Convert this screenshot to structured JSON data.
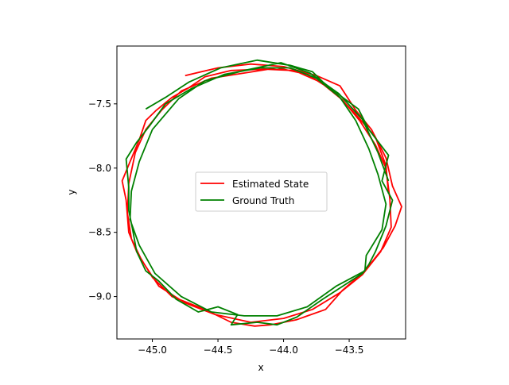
{
  "chart_data": {
    "type": "line",
    "xlabel": "x",
    "ylabel": "y",
    "xlim": [
      -45.27,
      -43.07
    ],
    "ylim": [
      -9.33,
      -7.05
    ],
    "xticks": [
      -45.0,
      -44.5,
      -44.0,
      -43.5
    ],
    "xtick_labels": [
      "−45.0",
      "−44.5",
      "−44.0",
      "−43.5"
    ],
    "yticks": [
      -7.5,
      -8.0,
      -8.5,
      -9.0
    ],
    "ytick_labels": [
      "−7.5",
      "−8.0",
      "−8.5",
      "−9.0"
    ],
    "grid": false,
    "legend_position": "center",
    "series": [
      {
        "name": "Estimated State",
        "color": "#ff0000",
        "points": [
          [
            -44.75,
            -7.28
          ],
          [
            -44.5,
            -7.22
          ],
          [
            -44.25,
            -7.19
          ],
          [
            -44.0,
            -7.21
          ],
          [
            -43.75,
            -7.28
          ],
          [
            -43.57,
            -7.36
          ],
          [
            -43.45,
            -7.55
          ],
          [
            -43.33,
            -7.7
          ],
          [
            -43.22,
            -7.92
          ],
          [
            -43.17,
            -8.14
          ],
          [
            -43.1,
            -8.3
          ],
          [
            -43.15,
            -8.45
          ],
          [
            -43.24,
            -8.62
          ],
          [
            -43.38,
            -8.8
          ],
          [
            -43.55,
            -8.95
          ],
          [
            -43.68,
            -9.1
          ],
          [
            -43.9,
            -9.18
          ],
          [
            -44.1,
            -9.22
          ],
          [
            -44.22,
            -9.23
          ],
          [
            -44.4,
            -9.2
          ],
          [
            -44.6,
            -9.1
          ],
          [
            -44.85,
            -9.0
          ],
          [
            -45.0,
            -8.85
          ],
          [
            -45.12,
            -8.65
          ],
          [
            -45.18,
            -8.5
          ],
          [
            -45.2,
            -8.25
          ],
          [
            -45.23,
            -8.1
          ],
          [
            -45.17,
            -7.95
          ],
          [
            -45.1,
            -7.78
          ],
          [
            -45.05,
            -7.63
          ],
          [
            -44.97,
            -7.55
          ],
          [
            -44.85,
            -7.45
          ],
          [
            -44.73,
            -7.38
          ],
          [
            -44.6,
            -7.29
          ],
          [
            -44.4,
            -7.24
          ],
          [
            -44.15,
            -7.23
          ],
          [
            -43.92,
            -7.24
          ],
          [
            -43.72,
            -7.33
          ],
          [
            -43.55,
            -7.47
          ],
          [
            -43.42,
            -7.63
          ],
          [
            -43.3,
            -7.82
          ],
          [
            -43.22,
            -8.0
          ],
          [
            -43.19,
            -8.24
          ],
          [
            -43.18,
            -8.46
          ],
          [
            -43.26,
            -8.65
          ],
          [
            -43.4,
            -8.83
          ],
          [
            -43.57,
            -8.97
          ],
          [
            -43.78,
            -9.1
          ],
          [
            -44.0,
            -9.17
          ],
          [
            -44.25,
            -9.2
          ],
          [
            -44.52,
            -9.14
          ],
          [
            -44.75,
            -9.05
          ],
          [
            -44.95,
            -8.92
          ],
          [
            -45.08,
            -8.72
          ],
          [
            -45.16,
            -8.55
          ],
          [
            -45.19,
            -8.35
          ],
          [
            -45.18,
            -8.12
          ],
          [
            -45.13,
            -7.88
          ],
          [
            -45.05,
            -7.7
          ],
          [
            -44.93,
            -7.55
          ],
          [
            -44.78,
            -7.4
          ],
          [
            -44.55,
            -7.3
          ],
          [
            -44.3,
            -7.26
          ],
          [
            -44.05,
            -7.22
          ],
          [
            -43.82,
            -7.27
          ],
          [
            -43.62,
            -7.4
          ],
          [
            -43.45,
            -7.58
          ],
          [
            -43.3,
            -7.76
          ],
          [
            -43.22,
            -7.98
          ],
          [
            -43.2,
            -8.2
          ]
        ]
      },
      {
        "name": "Ground Truth",
        "color": "#008000",
        "points": [
          [
            -45.05,
            -7.54
          ],
          [
            -44.9,
            -7.45
          ],
          [
            -44.72,
            -7.33
          ],
          [
            -44.48,
            -7.22
          ],
          [
            -44.2,
            -7.16
          ],
          [
            -43.95,
            -7.2
          ],
          [
            -43.78,
            -7.25
          ],
          [
            -43.7,
            -7.33
          ],
          [
            -43.55,
            -7.45
          ],
          [
            -43.43,
            -7.54
          ],
          [
            -43.35,
            -7.7
          ],
          [
            -43.2,
            -7.9
          ],
          [
            -43.25,
            -8.1
          ],
          [
            -43.17,
            -8.25
          ],
          [
            -43.22,
            -8.45
          ],
          [
            -43.3,
            -8.65
          ],
          [
            -43.35,
            -8.75
          ],
          [
            -43.4,
            -8.82
          ],
          [
            -43.55,
            -8.92
          ],
          [
            -43.7,
            -9.02
          ],
          [
            -43.9,
            -9.16
          ],
          [
            -44.05,
            -9.22
          ],
          [
            -44.2,
            -9.2
          ],
          [
            -44.4,
            -9.22
          ],
          [
            -44.35,
            -9.14
          ],
          [
            -44.5,
            -9.08
          ],
          [
            -44.65,
            -9.12
          ],
          [
            -44.82,
            -9.02
          ],
          [
            -44.95,
            -8.88
          ],
          [
            -45.05,
            -8.8
          ],
          [
            -45.12,
            -8.65
          ],
          [
            -45.15,
            -8.48
          ],
          [
            -45.18,
            -8.33
          ],
          [
            -45.18,
            -8.15
          ],
          [
            -45.2,
            -7.93
          ],
          [
            -45.12,
            -7.8
          ],
          [
            -45.02,
            -7.67
          ],
          [
            -44.9,
            -7.5
          ],
          [
            -44.7,
            -7.38
          ],
          [
            -44.45,
            -7.27
          ],
          [
            -44.18,
            -7.22
          ],
          [
            -43.95,
            -7.22
          ],
          [
            -43.75,
            -7.3
          ],
          [
            -43.57,
            -7.45
          ],
          [
            -43.45,
            -7.63
          ],
          [
            -43.35,
            -7.85
          ],
          [
            -43.28,
            -8.05
          ],
          [
            -43.22,
            -8.28
          ],
          [
            -43.25,
            -8.48
          ],
          [
            -43.37,
            -8.68
          ],
          [
            -43.38,
            -8.8
          ],
          [
            -43.6,
            -8.92
          ],
          [
            -43.82,
            -9.08
          ],
          [
            -44.05,
            -9.15
          ],
          [
            -44.3,
            -9.15
          ],
          [
            -44.55,
            -9.12
          ],
          [
            -44.78,
            -9.0
          ],
          [
            -44.98,
            -8.82
          ],
          [
            -45.1,
            -8.6
          ],
          [
            -45.17,
            -8.4
          ],
          [
            -45.16,
            -8.18
          ],
          [
            -45.1,
            -7.95
          ],
          [
            -45.0,
            -7.7
          ],
          [
            -44.8,
            -7.46
          ],
          [
            -44.6,
            -7.32
          ],
          [
            -44.3,
            -7.24
          ],
          [
            -44.02,
            -7.18
          ],
          [
            -43.8,
            -7.26
          ],
          [
            -43.58,
            -7.42
          ],
          [
            -43.4,
            -7.62
          ],
          [
            -43.28,
            -7.88
          ],
          [
            -43.2,
            -8.1
          ]
        ]
      }
    ]
  }
}
